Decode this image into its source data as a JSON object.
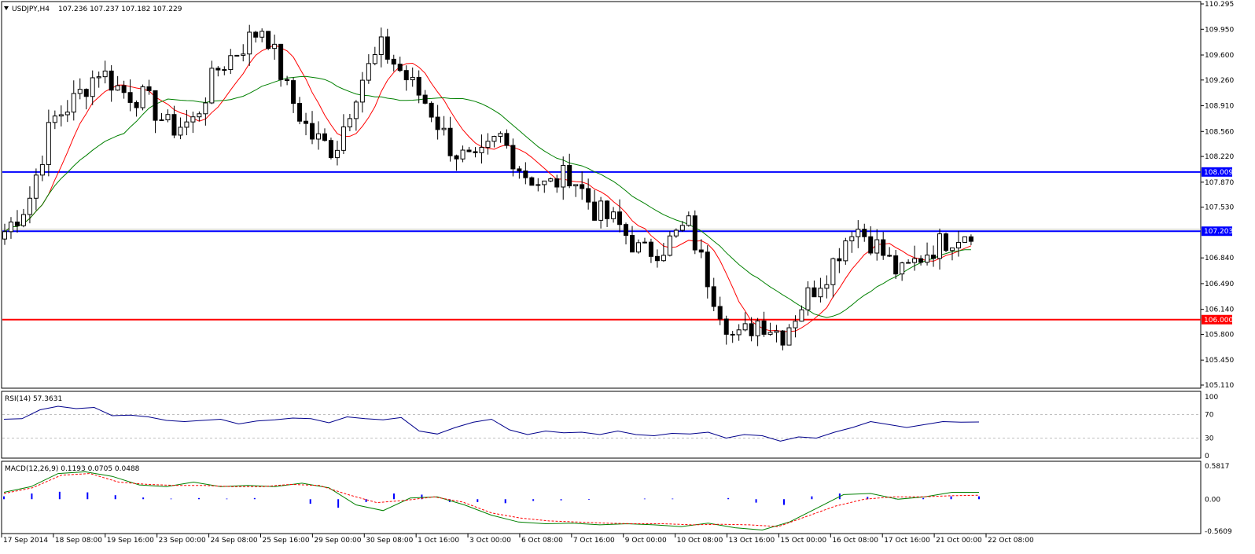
{
  "header": {
    "symbol": "USDJPY,H4",
    "ohlc": "107.236 107.237 107.182 107.229",
    "dropdown_icon": "triangle-down-icon"
  },
  "chart_data": [
    {
      "type": "candlestick",
      "title": "USDJPY,H4",
      "ylim": [
        105.11,
        110.295
      ],
      "y_ticks": [
        "110.295",
        "109.950",
        "109.600",
        "109.260",
        "108.910",
        "108.560",
        "108.220",
        "107.870",
        "107.530",
        "106.840",
        "106.490",
        "106.140",
        "105.800",
        "105.450",
        "105.110"
      ],
      "x_tick_labels": [
        "17 Sep 2014",
        "18 Sep 08:00",
        "19 Sep 16:00",
        "23 Sep 00:00",
        "24 Sep 08:00",
        "25 Sep 16:00",
        "29 Sep 00:00",
        "30 Sep 08:00",
        "1 Oct 16:00",
        "3 Oct 00:00",
        "6 Oct 08:00",
        "7 Oct 16:00",
        "9 Oct 00:00",
        "10 Oct 08:00",
        "13 Oct 16:00",
        "15 Oct 00:00",
        "16 Oct 08:00",
        "17 Oct 16:00",
        "21 Oct 00:00",
        "22 Oct 08:00"
      ],
      "horizontal_lines": [
        {
          "value": 108.009,
          "label": "108.009",
          "color": "#0000ff"
        },
        {
          "value": 107.203,
          "label": "107.203",
          "color": "#0000ff"
        },
        {
          "value": 106.0,
          "label": "106.000",
          "color": "#ff0000"
        }
      ],
      "key_closes": [
        107.2,
        107.6,
        108.7,
        109.0,
        109.4,
        109.1,
        109.0,
        108.6,
        108.7,
        109.4,
        109.7,
        110.0,
        109.1,
        108.5,
        108.3,
        109.2,
        109.7,
        109.3,
        108.9,
        108.3,
        108.1,
        108.5,
        108.0,
        107.8,
        108.0,
        107.5,
        107.3,
        106.9,
        107.0,
        107.3,
        106.4,
        105.7,
        106.0,
        105.8,
        106.3,
        106.7,
        107.3,
        107.0,
        106.6,
        106.9,
        107.1,
        107.23
      ],
      "series": [
        {
          "name": "",
          "color": "#ff0000"
        },
        {
          "name": "",
          "color": "#008000"
        }
      ]
    },
    {
      "type": "line",
      "title": "RSI(14) 57.3631",
      "ylim": [
        0,
        100
      ],
      "y_ticks": [
        "100",
        "70",
        "30",
        "0"
      ],
      "levels": [
        70,
        30
      ],
      "values": [
        62,
        63,
        78,
        84,
        80,
        82,
        68,
        69,
        66,
        60,
        58,
        60,
        62,
        54,
        59,
        61,
        64,
        63,
        56,
        66,
        63,
        61,
        65,
        42,
        37,
        48,
        57,
        62,
        44,
        36,
        42,
        39,
        40,
        36,
        42,
        36,
        34,
        38,
        37,
        40,
        30,
        36,
        34,
        25,
        32,
        30,
        40,
        48,
        58,
        53,
        48,
        53,
        58,
        57,
        57.36
      ]
    },
    {
      "type": "line",
      "title": "MACD(12,26,9) 0.1193 0.0705 0.0488",
      "ylim": [
        -0.5609,
        0.5817
      ],
      "y_ticks": [
        "0.5817",
        "0.00",
        "-0.5609"
      ],
      "series": [
        {
          "name": "",
          "color": "#008000",
          "values": [
            0.12,
            0.22,
            0.45,
            0.48,
            0.4,
            0.25,
            0.22,
            0.3,
            0.22,
            0.24,
            0.22,
            0.28,
            0.2,
            -0.1,
            -0.2,
            0.02,
            0.04,
            -0.1,
            -0.28,
            -0.4,
            -0.43,
            -0.42,
            -0.45,
            -0.43,
            -0.45,
            -0.48,
            -0.42,
            -0.5,
            -0.54,
            -0.4,
            -0.16,
            0.08,
            0.1,
            0.0,
            0.04,
            0.12,
            0.12
          ]
        },
        {
          "name": "",
          "color": "#ff0000",
          "values": [
            0.1,
            0.2,
            0.42,
            0.45,
            0.3,
            0.26,
            0.24,
            0.24,
            0.22,
            0.22,
            0.26,
            0.24,
            0.08,
            -0.06,
            -0.02,
            0.04,
            -0.05,
            -0.24,
            -0.33,
            -0.38,
            -0.4,
            -0.42,
            -0.43,
            -0.43,
            -0.45,
            -0.44,
            -0.45,
            -0.48,
            -0.3,
            -0.12,
            0.0,
            0.04,
            0.04,
            0.06,
            0.07
          ]
        },
        {
          "name": "",
          "color": "#0000ff",
          "values": [
            0.05,
            0.1,
            0.13,
            0.12,
            0.07,
            0.03,
            0.01,
            0.02,
            0.01,
            0.02,
            0.0,
            -0.08,
            -0.15,
            -0.05,
            0.1,
            0.08,
            -0.05,
            -0.05,
            -0.07,
            -0.03,
            -0.02,
            -0.01,
            0.0,
            0.01,
            0.01,
            0.0,
            0.02,
            -0.06,
            -0.1,
            0.05,
            0.1,
            0.04,
            0.01,
            0.02,
            0.05,
            0.05
          ]
        }
      ]
    }
  ]
}
